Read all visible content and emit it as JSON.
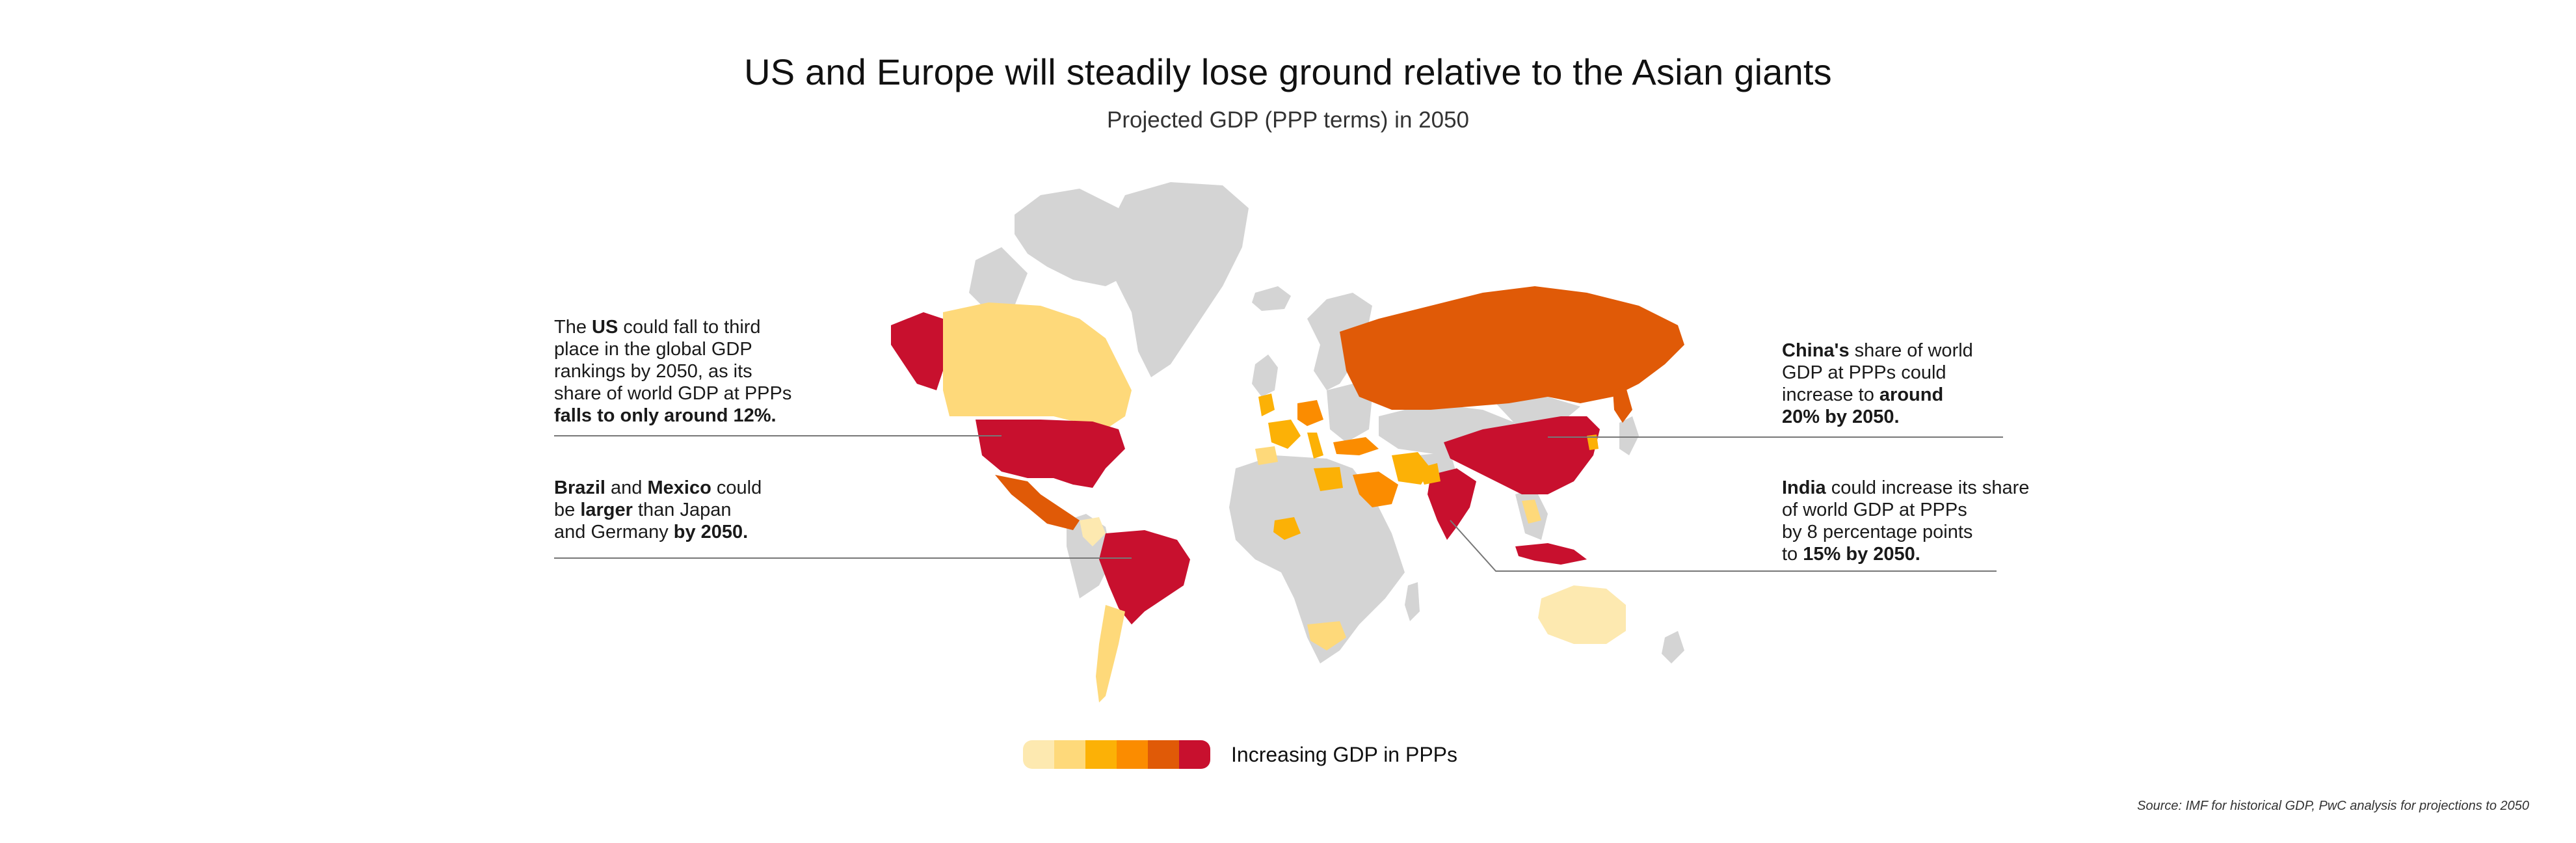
{
  "title": "US and Europe will steadily lose ground relative to the Asian giants",
  "subtitle": "Projected GDP (PPP terms) in 2050",
  "colors": {
    "land_neutral": "#d4d4d4",
    "scale": [
      "#fde9b0",
      "#fed97a",
      "#fcb106",
      "#fb8c00",
      "#e05a07",
      "#c8102e"
    ]
  },
  "annotations": {
    "us": {
      "line1_pre": "The ",
      "line1_bold": "US",
      "line1_post": " could fall to third",
      "line2": "place in the global GDP",
      "line3": "rankings by 2050, as its",
      "line4": "share of world GDP at PPPs",
      "line5_bold": "falls to only around 12%."
    },
    "brazil_mexico": {
      "b1": "Brazil",
      "t1": " and ",
      "b2": "Mexico",
      "t2": " could",
      "t3": "be ",
      "b3": "larger",
      "t4": " than Japan",
      "t5": "and Germany ",
      "b4": "by 2050."
    },
    "china": {
      "b1": "China's",
      "t1": " share of world",
      "t2": "GDP at PPPs could",
      "t3": "increase to ",
      "b2": "around",
      "b3": "20% by 2050."
    },
    "india": {
      "b1": "India",
      "t1": " could increase its share",
      "t2": "of world GDP at PPPs",
      "t3": "by 8 percentage points",
      "t4": "to ",
      "b2": "15% by 2050."
    }
  },
  "legend": {
    "label": "Increasing GDP in PPPs"
  },
  "source": "Source: IMF for historical GDP, PwC analysis for projections to 2050"
}
